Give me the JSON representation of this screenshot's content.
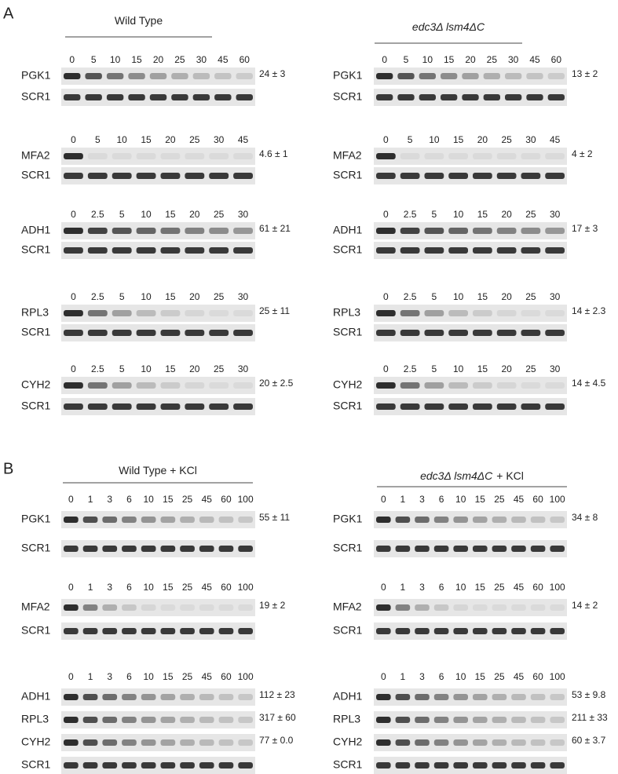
{
  "panels": [
    {
      "label": "A",
      "columns": [
        {
          "title": "Wild Type",
          "groups": [
            {
              "times": [
                "0",
                "5",
                "10",
                "15",
                "20",
                "25",
                "30",
                "45",
                "60"
              ],
              "rows": [
                {
                  "gene": "PGK1",
                  "half_life": "24 ± 3"
                },
                {
                  "gene": "SCR1"
                }
              ]
            },
            {
              "times": [
                "0",
                "5",
                "10",
                "15",
                "20",
                "25",
                "30",
                "45"
              ],
              "rows": [
                {
                  "gene": "MFA2",
                  "half_life": "4.6 ± 1"
                },
                {
                  "gene": "SCR1"
                }
              ]
            },
            {
              "times": [
                "0",
                "2.5",
                "5",
                "10",
                "15",
                "20",
                "25",
                "30"
              ],
              "rows": [
                {
                  "gene": "ADH1",
                  "half_life": "61 ± 21"
                },
                {
                  "gene": "SCR1"
                }
              ]
            },
            {
              "times": [
                "0",
                "2.5",
                "5",
                "10",
                "15",
                "20",
                "25",
                "30"
              ],
              "rows": [
                {
                  "gene": "RPL3",
                  "half_life": "25 ± 11"
                },
                {
                  "gene": "SCR1"
                }
              ]
            },
            {
              "times": [
                "0",
                "2.5",
                "5",
                "10",
                "15",
                "20",
                "25",
                "30"
              ],
              "rows": [
                {
                  "gene": "CYH2",
                  "half_life": "20 ± 2.5"
                },
                {
                  "gene": "SCR1"
                }
              ]
            }
          ]
        },
        {
          "title_italic": "edc3Δ lsm4ΔC",
          "groups": [
            {
              "times": [
                "0",
                "5",
                "10",
                "15",
                "20",
                "25",
                "30",
                "45",
                "60"
              ],
              "rows": [
                {
                  "gene": "PGK1",
                  "half_life": "13 ± 2"
                },
                {
                  "gene": "SCR1"
                }
              ]
            },
            {
              "times": [
                "0",
                "5",
                "10",
                "15",
                "20",
                "25",
                "30",
                "45"
              ],
              "rows": [
                {
                  "gene": "MFA2",
                  "half_life": "4 ± 2"
                },
                {
                  "gene": "SCR1"
                }
              ]
            },
            {
              "times": [
                "0",
                "2.5",
                "5",
                "10",
                "15",
                "20",
                "25",
                "30"
              ],
              "rows": [
                {
                  "gene": "ADH1",
                  "half_life": "17 ± 3"
                },
                {
                  "gene": "SCR1"
                }
              ]
            },
            {
              "times": [
                "0",
                "2.5",
                "5",
                "10",
                "15",
                "20",
                "25",
                "30"
              ],
              "rows": [
                {
                  "gene": "RPL3",
                  "half_life": "14 ± 2.3"
                },
                {
                  "gene": "SCR1"
                }
              ]
            },
            {
              "times": [
                "0",
                "2.5",
                "5",
                "10",
                "15",
                "20",
                "25",
                "30"
              ],
              "rows": [
                {
                  "gene": "CYH2",
                  "half_life": "14 ± 4.5"
                },
                {
                  "gene": "SCR1"
                }
              ]
            }
          ]
        }
      ]
    },
    {
      "label": "B",
      "columns": [
        {
          "title": "Wild Type + KCl",
          "groups": [
            {
              "times": [
                "0",
                "1",
                "3",
                "6",
                "10",
                "15",
                "25",
                "45",
                "60",
                "100"
              ],
              "rows": [
                {
                  "gene": "PGK1",
                  "half_life": "55 ± 11"
                },
                {
                  "gene": "SCR1"
                }
              ]
            },
            {
              "times": [
                "0",
                "1",
                "3",
                "6",
                "10",
                "15",
                "25",
                "45",
                "60",
                "100"
              ],
              "rows": [
                {
                  "gene": "MFA2",
                  "half_life": "19 ± 2"
                },
                {
                  "gene": "SCR1"
                }
              ]
            },
            {
              "times": [
                "0",
                "1",
                "3",
                "6",
                "10",
                "15",
                "25",
                "45",
                "60",
                "100"
              ],
              "rows": [
                {
                  "gene": "ADH1",
                  "half_life": "112 ± 23"
                },
                {
                  "gene": "RPL3",
                  "half_life": "317 ± 60"
                },
                {
                  "gene": "CYH2",
                  "half_life": "77 ±  0.0"
                },
                {
                  "gene": "SCR1"
                }
              ]
            }
          ]
        },
        {
          "title_italic": "edc3Δ lsm4ΔC",
          "title": "+ KCl",
          "groups": [
            {
              "times": [
                "0",
                "1",
                "3",
                "6",
                "10",
                "15",
                "25",
                "45",
                "60",
                "100"
              ],
              "rows": [
                {
                  "gene": "PGK1",
                  "half_life": "34 ± 8"
                },
                {
                  "gene": "SCR1"
                }
              ]
            },
            {
              "times": [
                "0",
                "1",
                "3",
                "6",
                "10",
                "15",
                "25",
                "45",
                "60",
                "100"
              ],
              "rows": [
                {
                  "gene": "MFA2",
                  "half_life": "14 ± 2"
                },
                {
                  "gene": "SCR1"
                }
              ]
            },
            {
              "times": [
                "0",
                "1",
                "3",
                "6",
                "10",
                "15",
                "25",
                "45",
                "60",
                "100"
              ],
              "rows": [
                {
                  "gene": "ADH1",
                  "half_life": "53 ± 9.8"
                },
                {
                  "gene": "RPL3",
                  "half_life": "211 ± 33"
                },
                {
                  "gene": "CYH2",
                  "half_life": "60 ± 3.7"
                },
                {
                  "gene": "SCR1"
                }
              ]
            }
          ]
        }
      ]
    }
  ]
}
